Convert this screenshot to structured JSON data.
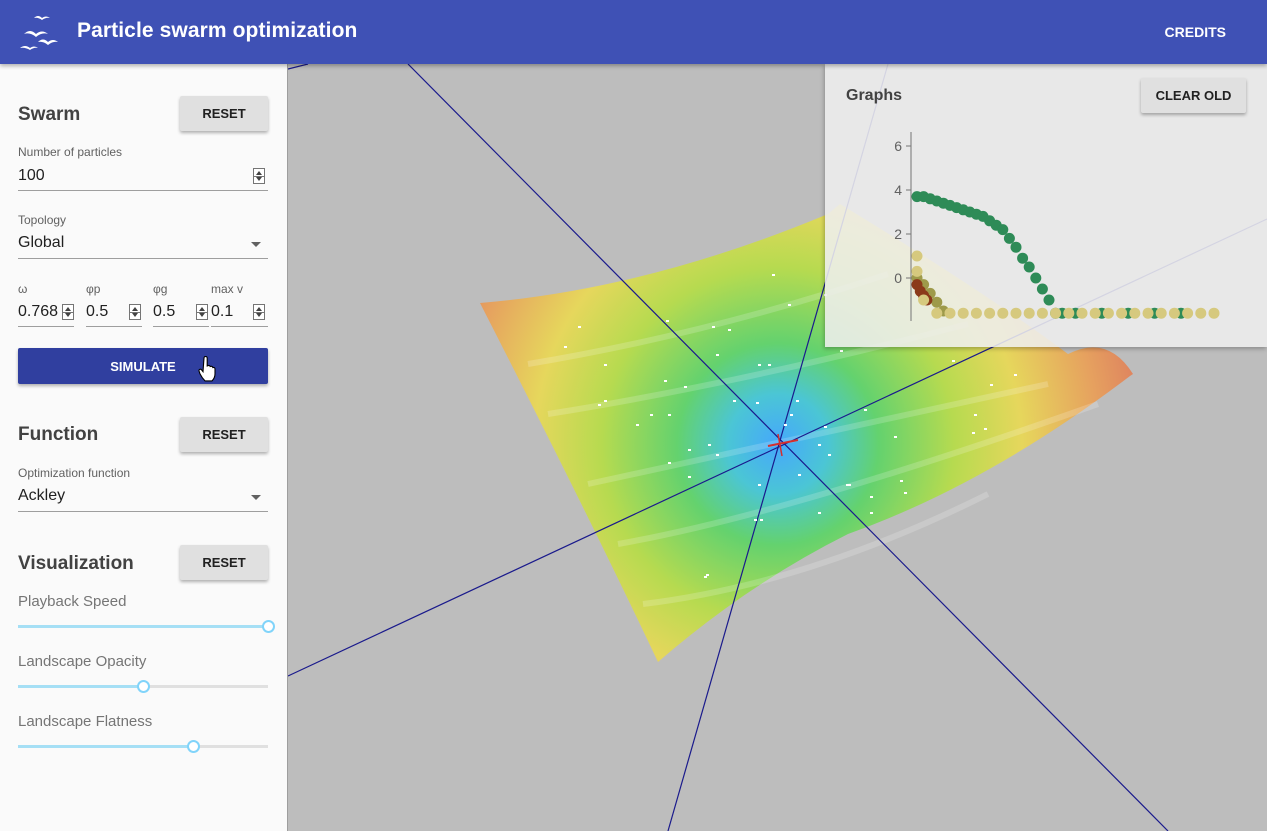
{
  "app": {
    "title": "Particle swarm optimization",
    "credits_label": "CREDITS"
  },
  "swarm": {
    "title": "Swarm",
    "reset_label": "RESET",
    "particles_label": "Number of particles",
    "particles_value": "100",
    "topology_label": "Topology",
    "topology_value": "Global",
    "params": [
      {
        "label": "ω",
        "value": "0.768"
      },
      {
        "label": "φp",
        "value": "0.5"
      },
      {
        "label": "φg",
        "value": "0.5"
      },
      {
        "label": "max v",
        "value": "0.1"
      }
    ],
    "simulate_label": "SIMULATE"
  },
  "function": {
    "title": "Function",
    "reset_label": "RESET",
    "opt_label": "Optimization function",
    "opt_value": "Ackley"
  },
  "visualization": {
    "title": "Visualization",
    "reset_label": "RESET",
    "sliders": [
      {
        "label": "Playback Speed",
        "value": 1.0
      },
      {
        "label": "Landscape Opacity",
        "value": 0.5
      },
      {
        "label": "Landscape Flatness",
        "value": 0.7
      }
    ]
  },
  "graphs": {
    "title": "Graphs",
    "clear_label": "CLEAR OLD",
    "chart_data": {
      "type": "scatter",
      "yticks": [
        "6",
        "4",
        "2",
        "0"
      ],
      "ylim": [
        -2,
        6
      ],
      "series": [
        {
          "color": "#2e8b57",
          "points": [
            [
              0,
              3.7
            ],
            [
              1,
              3.7
            ],
            [
              2,
              3.6
            ],
            [
              3,
              3.5
            ],
            [
              4,
              3.4
            ],
            [
              5,
              3.3
            ],
            [
              6,
              3.2
            ],
            [
              7,
              3.1
            ],
            [
              8,
              3.0
            ],
            [
              9,
              2.9
            ],
            [
              10,
              2.8
            ],
            [
              11,
              2.6
            ],
            [
              12,
              2.4
            ],
            [
              13,
              2.2
            ],
            [
              14,
              1.8
            ],
            [
              15,
              1.4
            ],
            [
              16,
              0.9
            ],
            [
              17,
              0.5
            ],
            [
              18,
              0.0
            ],
            [
              19,
              -0.5
            ],
            [
              20,
              -1.0
            ],
            [
              21,
              -1.6
            ],
            [
              22,
              -1.6
            ],
            [
              24,
              -1.6
            ],
            [
              28,
              -1.6
            ],
            [
              32,
              -1.6
            ],
            [
              36,
              -1.6
            ],
            [
              40,
              -1.6
            ]
          ]
        },
        {
          "color": "#9e9a4a",
          "points": [
            [
              0,
              0.0
            ],
            [
              1,
              -0.3
            ],
            [
              2,
              -0.7
            ],
            [
              3,
              -1.1
            ],
            [
              4,
              -1.5
            ]
          ]
        },
        {
          "color": "#8b3a1a",
          "points": [
            [
              0,
              -0.3
            ],
            [
              0.5,
              -0.6
            ],
            [
              1,
              -0.8
            ],
            [
              1.5,
              -1.0
            ]
          ]
        },
        {
          "color": "#d6c97e",
          "points": [
            [
              0,
              1.0
            ],
            [
              0,
              0.3
            ],
            [
              1,
              -1.0
            ],
            [
              3,
              -1.6
            ],
            [
              5,
              -1.6
            ],
            [
              7,
              -1.6
            ],
            [
              9,
              -1.6
            ],
            [
              11,
              -1.6
            ],
            [
              13,
              -1.6
            ],
            [
              15,
              -1.6
            ],
            [
              17,
              -1.6
            ],
            [
              19,
              -1.6
            ],
            [
              21,
              -1.6
            ],
            [
              23,
              -1.6
            ],
            [
              25,
              -1.6
            ],
            [
              27,
              -1.6
            ],
            [
              29,
              -1.6
            ],
            [
              31,
              -1.6
            ],
            [
              33,
              -1.6
            ],
            [
              35,
              -1.6
            ],
            [
              37,
              -1.6
            ],
            [
              39,
              -1.6
            ],
            [
              41,
              -1.6
            ],
            [
              43,
              -1.6
            ],
            [
              45,
              -1.6
            ]
          ]
        }
      ]
    }
  }
}
